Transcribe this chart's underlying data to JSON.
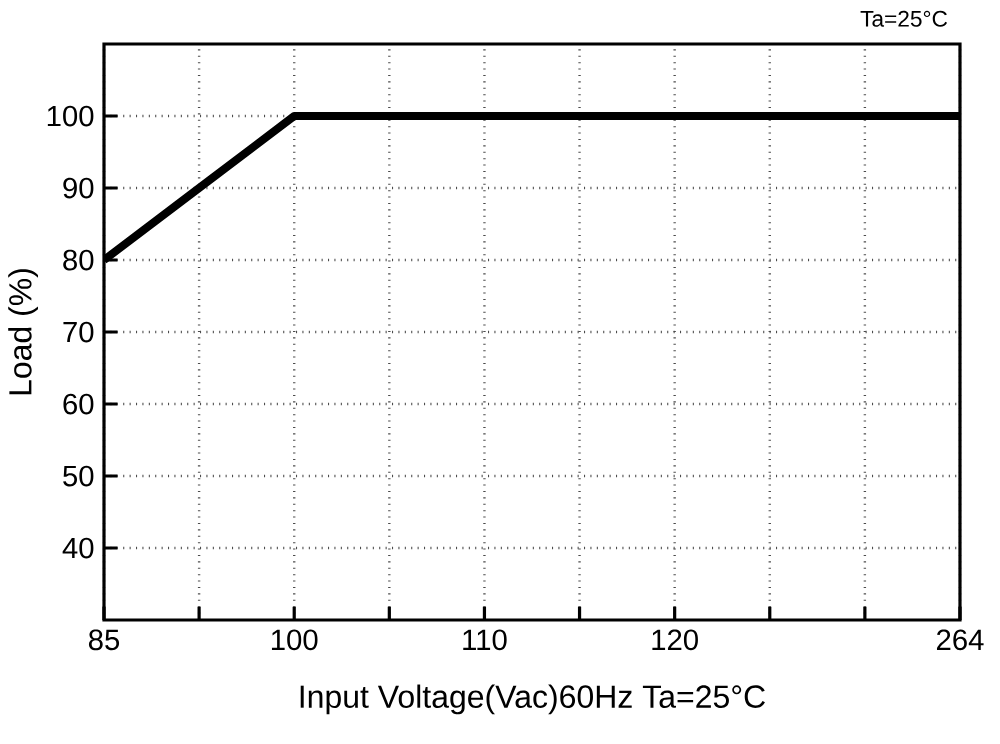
{
  "chart_data": {
    "type": "line",
    "xlabel": "Input Voltage(Vac)60Hz Ta=25°C",
    "ylabel": "Load (%)",
    "annotations": [
      "Ta=25°C"
    ],
    "categories": [
      "85",
      null,
      "100",
      null,
      "110",
      null,
      "120",
      null,
      null,
      "264"
    ],
    "series": [
      {
        "color": "#000000",
        "values": [
          80,
          90,
          100,
          100,
          100,
          100,
          100,
          100,
          100,
          100
        ]
      }
    ],
    "ylim": [
      30,
      110
    ],
    "yticks": [
      40,
      50,
      60,
      70,
      80,
      90,
      100
    ],
    "grid": true,
    "marker": "none",
    "line_style": "solid"
  }
}
